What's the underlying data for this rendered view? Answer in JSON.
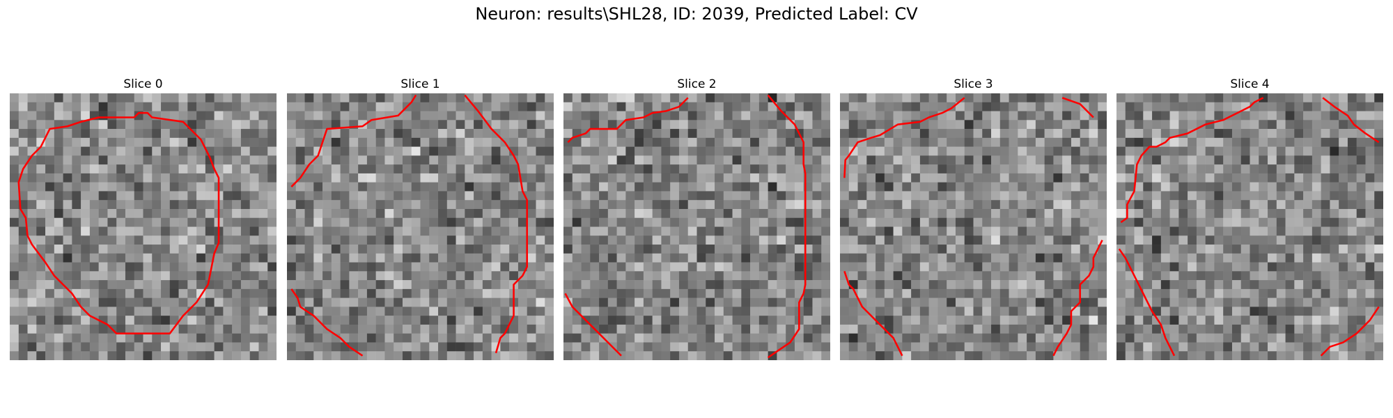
{
  "figure": {
    "title": "Neuron: results\\SHL28, ID: 2039, Predicted Label: CV"
  },
  "grid_size": 30,
  "contour_color": "#ff0000",
  "panels": [
    {
      "title": "Slice 0",
      "seed": 11,
      "contours": [
        [
          [
            14,
            2.7
          ],
          [
            14.5,
            2.2
          ],
          [
            15.5,
            2.2
          ],
          [
            16,
            2.7
          ],
          [
            19.5,
            3.2
          ],
          [
            21.5,
            5.2
          ],
          [
            22.5,
            7.2
          ],
          [
            23,
            8.5
          ],
          [
            23.5,
            9.5
          ],
          [
            23.5,
            16.8
          ],
          [
            23,
            18
          ],
          [
            22.3,
            21.5
          ],
          [
            21,
            23.5
          ],
          [
            19.5,
            25
          ],
          [
            18,
            27
          ],
          [
            12,
            27
          ],
          [
            11,
            26
          ],
          [
            9,
            25
          ],
          [
            8,
            24
          ],
          [
            7,
            22.5
          ],
          [
            6,
            21.5
          ],
          [
            5,
            20.5
          ],
          [
            4,
            19
          ],
          [
            2.5,
            17
          ],
          [
            2,
            16
          ],
          [
            1.8,
            14
          ],
          [
            1.2,
            13
          ],
          [
            1,
            10
          ],
          [
            1.5,
            8.5
          ],
          [
            2.5,
            7
          ],
          [
            3.5,
            6
          ],
          [
            4.5,
            4
          ],
          [
            6.5,
            3.7
          ],
          [
            8,
            3.2
          ],
          [
            10,
            2.7
          ],
          [
            14,
            2.7
          ]
        ]
      ]
    },
    {
      "title": "Slice 1",
      "seed": 23,
      "contours": [
        [
          [
            0.5,
            10.5
          ],
          [
            1.5,
            9.5
          ],
          [
            2.5,
            8
          ],
          [
            3.5,
            7
          ],
          [
            4.5,
            4
          ],
          [
            8.5,
            3.7
          ],
          [
            9.5,
            3
          ],
          [
            12.5,
            2.5
          ],
          [
            14,
            1
          ],
          [
            14.5,
            0.2
          ]
        ],
        [
          [
            20,
            0.2
          ],
          [
            21.5,
            2
          ],
          [
            23,
            4
          ],
          [
            24.5,
            5.5
          ],
          [
            25.5,
            7
          ],
          [
            26,
            8
          ],
          [
            26.5,
            11
          ],
          [
            27,
            12
          ],
          [
            27,
            19.5
          ],
          [
            26.5,
            20.5
          ],
          [
            25.5,
            21.5
          ],
          [
            25.5,
            25
          ],
          [
            25,
            26
          ],
          [
            24.5,
            27
          ],
          [
            24,
            27.5
          ],
          [
            23.5,
            29.2
          ]
        ],
        [
          [
            0.5,
            22
          ],
          [
            1.2,
            23
          ],
          [
            1.5,
            24
          ],
          [
            3,
            25
          ],
          [
            4.5,
            26.5
          ],
          [
            6,
            27.5
          ],
          [
            7,
            28.5
          ],
          [
            8.5,
            29.5
          ]
        ]
      ]
    },
    {
      "title": "Slice 2",
      "seed": 37,
      "contours": [
        [
          [
            0.5,
            5.5
          ],
          [
            1,
            5
          ],
          [
            2.5,
            4.5
          ],
          [
            3,
            4
          ],
          [
            6,
            4
          ],
          [
            7,
            3
          ],
          [
            9,
            2.7
          ],
          [
            10,
            2.2
          ],
          [
            11.5,
            2
          ],
          [
            13,
            1.5
          ],
          [
            14,
            0.5
          ]
        ],
        [
          [
            23,
            0.2
          ],
          [
            24.5,
            2
          ],
          [
            26,
            3.5
          ],
          [
            27,
            5.5
          ],
          [
            27,
            8
          ],
          [
            27.2,
            9
          ],
          [
            27.2,
            21.5
          ],
          [
            27,
            22.5
          ],
          [
            26.5,
            23.5
          ],
          [
            26.5,
            26.5
          ],
          [
            25.5,
            28
          ],
          [
            23,
            29.7
          ]
        ],
        [
          [
            0.2,
            22.5
          ],
          [
            1,
            24
          ],
          [
            1.7,
            24.7
          ],
          [
            3,
            26
          ],
          [
            4,
            27
          ],
          [
            5,
            28
          ],
          [
            6.5,
            29.5
          ]
        ]
      ]
    },
    {
      "title": "Slice 3",
      "seed": 49,
      "contours": [
        [
          [
            0.5,
            9.5
          ],
          [
            0.6,
            7.5
          ],
          [
            1,
            7
          ],
          [
            2,
            5.5
          ],
          [
            3.5,
            5
          ],
          [
            4.5,
            4.7
          ],
          [
            6.5,
            3.5
          ],
          [
            9,
            3.2
          ],
          [
            10,
            2.7
          ],
          [
            11.5,
            2.2
          ],
          [
            12.5,
            1.7
          ],
          [
            14,
            0.5
          ]
        ],
        [
          [
            25,
            0.5
          ],
          [
            27,
            1.2
          ],
          [
            28.5,
            2.7
          ]
        ],
        [
          [
            29.5,
            16.5
          ],
          [
            29,
            17.5
          ],
          [
            28.5,
            18.5
          ],
          [
            28.5,
            19.5
          ],
          [
            28,
            20.5
          ],
          [
            27,
            21.5
          ],
          [
            27,
            23.5
          ],
          [
            26,
            24.5
          ],
          [
            26,
            26
          ],
          [
            25.5,
            27
          ],
          [
            24.5,
            28.5
          ],
          [
            24,
            29.5
          ]
        ],
        [
          [
            0.5,
            20
          ],
          [
            1,
            21.5
          ],
          [
            1.5,
            22
          ],
          [
            2.5,
            24
          ],
          [
            3,
            24.5
          ],
          [
            4,
            25.5
          ],
          [
            5,
            26.5
          ],
          [
            6,
            27.5
          ],
          [
            7,
            29.5
          ]
        ]
      ]
    },
    {
      "title": "Slice 4",
      "seed": 61,
      "contours": [
        [
          [
            0.5,
            14.5
          ],
          [
            1.2,
            14
          ],
          [
            1.2,
            12.5
          ],
          [
            2,
            11
          ],
          [
            2.3,
            8
          ],
          [
            2.8,
            7
          ],
          [
            3.7,
            6
          ],
          [
            4.5,
            6
          ],
          [
            5.5,
            5.5
          ],
          [
            6,
            5
          ],
          [
            8,
            4.5
          ],
          [
            9,
            4
          ],
          [
            10,
            3.5
          ],
          [
            12,
            3
          ],
          [
            13,
            2.5
          ],
          [
            14,
            2
          ],
          [
            15,
            1.5
          ],
          [
            15.5,
            1
          ],
          [
            16.5,
            0.5
          ]
        ],
        [
          [
            23.2,
            0.5
          ],
          [
            24.5,
            1.5
          ],
          [
            26,
            2.5
          ],
          [
            26.7,
            3.5
          ],
          [
            28,
            4.5
          ],
          [
            29.5,
            5.5
          ]
        ],
        [
          [
            0.3,
            17.5
          ],
          [
            1,
            18.5
          ],
          [
            1.5,
            19.5
          ],
          [
            2.5,
            21.5
          ],
          [
            3,
            22.5
          ],
          [
            3.5,
            23.5
          ],
          [
            4,
            24.5
          ],
          [
            5,
            26
          ],
          [
            5.5,
            27.5
          ],
          [
            6.5,
            29.5
          ]
        ],
        [
          [
            29.5,
            24
          ],
          [
            28.5,
            25.5
          ],
          [
            27,
            27
          ],
          [
            25.5,
            28
          ],
          [
            24,
            28.5
          ],
          [
            23,
            29.5
          ]
        ]
      ]
    }
  ]
}
